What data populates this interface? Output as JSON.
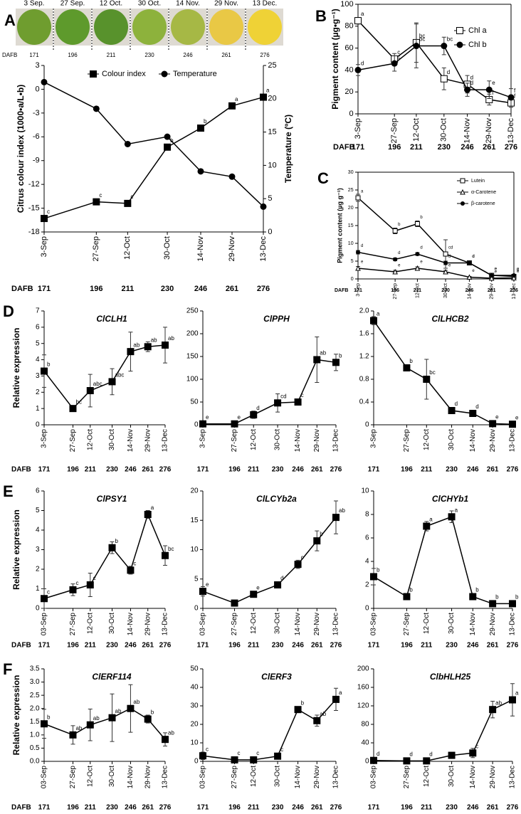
{
  "photo_strip": {
    "labels": [
      "3 Sep.",
      "27 Sep.",
      "12 Oct.",
      "30 Oct.",
      "14 Nov.",
      "29 Nov.",
      "13 Dec."
    ],
    "dafb_label": "DAFB",
    "dafb": [
      171,
      196,
      211,
      230,
      246,
      261,
      276
    ]
  },
  "chart_data": [
    {
      "type": "line",
      "panel": "A",
      "categories": [
        "3-Sep",
        "27-Sep",
        "12-Oct",
        "30-Oct",
        "14-Nov",
        "29-Nov",
        "13-Dec"
      ],
      "x": [
        171,
        196,
        211,
        230,
        246,
        261,
        276
      ],
      "xlim": [
        171,
        276
      ],
      "dafb_label": "DAFB",
      "y_label": "Citrus colour index (1000•a/L•b)",
      "y2_label": "Temperature (ºC)",
      "ylim": [
        -18,
        3
      ],
      "yticks": [
        -18,
        -15,
        -12,
        -9,
        -6,
        -3,
        0,
        3
      ],
      "y2lim": [
        0,
        25
      ],
      "y2ticks": [
        0,
        5,
        10,
        15,
        20,
        25
      ],
      "legend": "upper center",
      "series": [
        {
          "name": "Colour index",
          "marker": "square",
          "color": "#000000",
          "values": [
            -16.3,
            -14.2,
            -14.4,
            -7.3,
            -4.9,
            -2.1,
            -1.0
          ],
          "letters": [
            "c",
            "c",
            "c",
            "b",
            "b",
            "a",
            "a"
          ]
        },
        {
          "name": "Temperature",
          "marker": "circle",
          "color": "#000000",
          "axis": "y2",
          "values": [
            22.5,
            18.5,
            13.2,
            14.3,
            9.1,
            8.3,
            3.8
          ]
        }
      ]
    },
    {
      "type": "line",
      "panel": "B",
      "categories": [
        "3-Sep",
        "27-Sep",
        "12-Oct",
        "30-Oct",
        "14-Nov",
        "29-Nov",
        "13-Dec"
      ],
      "x": [
        171,
        196,
        211,
        230,
        246,
        261,
        276
      ],
      "xlim": [
        171,
        276
      ],
      "dafb_label": "DAFB",
      "frame": true,
      "y_label": "Pigment content (µg•g⁻¹)",
      "ylim": [
        0,
        100
      ],
      "yticks": [
        0,
        20,
        40,
        60,
        80,
        100
      ],
      "legend": "center right",
      "series": [
        {
          "name": "Chl a",
          "marker": "open-square",
          "color": "#000000",
          "values": [
            85,
            50,
            65,
            32,
            27,
            13,
            10
          ],
          "errors": [
            3,
            5,
            18,
            10,
            8,
            5,
            4
          ],
          "letters": [
            "a",
            "c",
            "bc",
            "d",
            "d",
            "f",
            "f"
          ]
        },
        {
          "name": "Chl b",
          "marker": "circle",
          "color": "#000000",
          "values": [
            40,
            46,
            62,
            62,
            22,
            22,
            15
          ],
          "errors": [
            5,
            7,
            20,
            8,
            6,
            8,
            8
          ],
          "letters": [
            "d",
            "c",
            "bc",
            "bc",
            "d",
            "e",
            "f"
          ]
        }
      ]
    },
    {
      "type": "line",
      "panel": "C",
      "categories": [
        "3-Sep",
        "27-Sep",
        "12-Oct",
        "30-Oct",
        "14-Nov",
        "29-Nov",
        "13-Dec"
      ],
      "x": [
        171,
        196,
        211,
        230,
        246,
        261,
        276
      ],
      "xlim": [
        171,
        276
      ],
      "dafb_label": "DAFB",
      "frame": true,
      "small": true,
      "y_label": "Pigment content (µg g⁻¹)",
      "ylim": [
        0,
        30
      ],
      "yticks": [
        0,
        5,
        10,
        15,
        20,
        25,
        30
      ],
      "legend": "upper right",
      "series": [
        {
          "name": "Lutein",
          "marker": "open-square",
          "color": "#000000",
          "values": [
            22.8,
            13.5,
            15.5,
            7,
            4.5,
            1,
            0.7
          ],
          "errors": [
            1,
            0.8,
            0.8,
            4,
            0.5,
            0.3,
            0.3
          ],
          "letters": [
            "a",
            "b",
            "b",
            "cd",
            "d",
            "e",
            "e"
          ]
        },
        {
          "name": "α-Carotene",
          "marker": "triangle",
          "color": "#000000",
          "values": [
            3,
            2,
            3,
            2,
            0.5,
            0.2,
            0.3
          ],
          "errors": [
            0.5,
            0.4,
            0.4,
            0.4,
            0.2,
            0.1,
            0.1
          ],
          "letters": [
            "e",
            "e",
            "e",
            "e",
            "e",
            "e",
            "e"
          ]
        },
        {
          "name": "β-carotene",
          "marker": "circle",
          "color": "#000000",
          "values": [
            7.5,
            5.5,
            7,
            4.5,
            4.5,
            1,
            1
          ],
          "errors": [
            0.5,
            0.4,
            0.4,
            0.5,
            0.4,
            0.2,
            0.2
          ],
          "letters": [
            "d",
            "d",
            "d",
            "d",
            "d",
            "e",
            "e"
          ]
        }
      ]
    },
    {
      "type": "line",
      "panel": "D",
      "title": "ClCLH1",
      "categories": [
        "3-Sep",
        "27-Sep",
        "12-Oct",
        "30-Oct",
        "14-Nov",
        "29-Nov",
        "13-Dec"
      ],
      "x": [
        171,
        196,
        211,
        230,
        246,
        261,
        276
      ],
      "xlim": [
        171,
        276
      ],
      "dafb_label": "DAFB",
      "y_label": "Relative expression",
      "ylim": [
        0,
        7
      ],
      "yticks": [
        0,
        1,
        2,
        3,
        4,
        5,
        6,
        7
      ],
      "series": [
        {
          "marker": "square",
          "color": "#000000",
          "values": [
            3.3,
            1.0,
            2.1,
            2.65,
            4.5,
            4.8,
            4.9
          ],
          "errors": [
            1.0,
            0.1,
            1.0,
            0.8,
            1.2,
            0.3,
            1.1
          ],
          "letters": [
            "b",
            "bc",
            "abc",
            "abc",
            "ab",
            "ab",
            "ab"
          ]
        }
      ]
    },
    {
      "type": "line",
      "title": "ClPPH",
      "categories": [
        "3-Sep",
        "27-Sep",
        "12-Oct",
        "30-Oct",
        "14-Nov",
        "29-Nov",
        "13-Dec"
      ],
      "x": [
        171,
        196,
        211,
        230,
        246,
        261,
        276
      ],
      "xlim": [
        171,
        276
      ],
      "ylim": [
        0,
        250
      ],
      "yticks": [
        0,
        50,
        100,
        150,
        200,
        250
      ],
      "series": [
        {
          "marker": "square",
          "color": "#000000",
          "values": [
            2,
            2,
            22,
            48,
            50,
            143,
            137
          ],
          "errors": [
            1,
            1,
            8,
            20,
            5,
            50,
            18
          ],
          "letters": [
            "e",
            "e",
            "d",
            "cd",
            "c",
            "ab",
            "b"
          ]
        }
      ]
    },
    {
      "type": "line",
      "title": "ClLHCB2",
      "categories": [
        "3-Sep",
        "27-Sep",
        "12-Oct",
        "30-Oct",
        "14-Nov",
        "29-Nov",
        "13-Dec"
      ],
      "x": [
        171,
        196,
        211,
        230,
        246,
        261,
        276
      ],
      "xlim": [
        171,
        276
      ],
      "ylim": [
        0,
        2
      ],
      "yticks": [
        0,
        0.4,
        0.8,
        1.2,
        1.6,
        {
          "value": 2,
          "label": "2.0"
        }
      ],
      "series": [
        {
          "marker": "square",
          "color": "#000000",
          "values": [
            1.83,
            1.0,
            0.8,
            0.25,
            0.2,
            0.02,
            0.01
          ],
          "errors": [
            0.07,
            0.03,
            0.35,
            0.03,
            0.04,
            0.01,
            0.01
          ],
          "letters": [
            "a",
            "b",
            "bc",
            "d",
            "d",
            "e",
            "e"
          ]
        }
      ]
    },
    {
      "type": "line",
      "panel": "E",
      "title": "ClPSY1",
      "categories": [
        "03-Sep",
        "27-Sep",
        "12-Oct",
        "30-Oct",
        "14-Nov",
        "29-Nov",
        "13-Dec"
      ],
      "x": [
        171,
        196,
        211,
        230,
        246,
        261,
        276
      ],
      "xlim": [
        171,
        276
      ],
      "dafb_label": "DAFB",
      "y_label": "Relative expression",
      "ylim": [
        0,
        6
      ],
      "yticks": [
        0,
        1,
        2,
        3,
        4,
        5,
        6
      ],
      "series": [
        {
          "marker": "square",
          "color": "#000000",
          "values": [
            0.5,
            0.95,
            1.2,
            3.1,
            1.95,
            4.8,
            2.7
          ],
          "errors": [
            0.5,
            0.3,
            0.6,
            0.3,
            0.2,
            0.2,
            0.5
          ],
          "letters": [
            "c",
            "c",
            "c",
            "b",
            "c",
            "a",
            "bc"
          ]
        }
      ]
    },
    {
      "type": "line",
      "title": "ClLCYb2a",
      "categories": [
        "03-Sep",
        "27-Sep",
        "12-Oct",
        "30-Oct",
        "14-Nov",
        "29-Nov",
        "13-Dec"
      ],
      "x": [
        171,
        196,
        211,
        230,
        246,
        261,
        276
      ],
      "xlim": [
        171,
        276
      ],
      "ylim": [
        0,
        20
      ],
      "yticks": [
        0,
        5,
        10,
        15,
        20
      ],
      "series": [
        {
          "marker": "square",
          "color": "#000000",
          "values": [
            2.9,
            0.9,
            2.4,
            4.0,
            7.5,
            11.5,
            15.5
          ],
          "errors": [
            0.8,
            0.3,
            0.3,
            0.3,
            0.7,
            1.7,
            2.8
          ],
          "letters": [
            "e",
            null,
            "e",
            "d",
            "c",
            "b",
            "ab"
          ]
        }
      ]
    },
    {
      "type": "line",
      "title": "ClCHYb1",
      "categories": [
        "03-Sep",
        "27-Sep",
        "12-Oct",
        "30-Oct",
        "14-Nov",
        "29-Nov",
        "13-Dec"
      ],
      "x": [
        171,
        196,
        211,
        230,
        246,
        261,
        276
      ],
      "xlim": [
        171,
        276
      ],
      "ylim": [
        0,
        10
      ],
      "yticks": [
        0,
        2,
        4,
        6,
        8,
        10
      ],
      "series": [
        {
          "marker": "square",
          "color": "#000000",
          "values": [
            2.7,
            1.0,
            7.0,
            7.8,
            1.0,
            0.4,
            0.4
          ],
          "errors": [
            0.7,
            0.1,
            0.4,
            0.5,
            0.1,
            0.2,
            0.2
          ],
          "letters": [
            "b",
            "b",
            "a",
            "a",
            "b",
            "b",
            "b"
          ]
        }
      ]
    },
    {
      "type": "line",
      "panel": "F",
      "title": "ClERF114",
      "categories": [
        "03-Sep",
        "27-Sep",
        "12-Oct",
        "30-Oct",
        "14-Nov",
        "29-Nov",
        "13-Dec"
      ],
      "x": [
        171,
        196,
        211,
        230,
        246,
        261,
        276
      ],
      "xlim": [
        171,
        276
      ],
      "dafb_label": "DAFB",
      "y_label": "Relative expression",
      "ylim": [
        0,
        3.5
      ],
      "yticks": [
        {
          "value": 0,
          "label": "0.0"
        },
        0.5,
        {
          "value": 1,
          "label": "1.0"
        },
        1.5,
        {
          "value": 2,
          "label": "2.0"
        },
        2.5,
        {
          "value": 3,
          "label": "3.0"
        },
        3.5
      ],
      "series": [
        {
          "marker": "square",
          "color": "#000000",
          "values": [
            1.42,
            1.0,
            1.38,
            1.65,
            2.0,
            1.6,
            0.83
          ],
          "errors": [
            0.55,
            0.35,
            0.6,
            0.9,
            0.9,
            0.15,
            0.25
          ],
          "letters": [
            "b",
            "ab",
            "ab",
            "ab",
            "ab",
            "b",
            "ab"
          ]
        }
      ]
    },
    {
      "type": "line",
      "title": "ClERF3",
      "categories": [
        "03-Sep",
        "27-Sep",
        "12-Oct",
        "30-Oct",
        "14-Nov",
        "29-Nov",
        "13-Dec"
      ],
      "x": [
        171,
        196,
        211,
        230,
        246,
        261,
        276
      ],
      "xlim": [
        171,
        276
      ],
      "ylim": [
        0,
        50
      ],
      "yticks": [
        0,
        10,
        20,
        30,
        40,
        50
      ],
      "series": [
        {
          "marker": "square",
          "color": "#000000",
          "values": [
            3,
            0.8,
            0.8,
            2.8,
            28,
            22,
            33.5
          ],
          "errors": [
            2,
            1,
            1,
            1,
            1,
            3,
            6
          ],
          "letters": [
            "c",
            "c",
            "c",
            "c",
            "b",
            "ab",
            "a"
          ]
        }
      ]
    },
    {
      "type": "line",
      "title": "ClbHLH25",
      "categories": [
        "03-Sep",
        "27-Sep",
        "12-Oct",
        "30-Oct",
        "14-Nov",
        "29-Nov",
        "13-Dec"
      ],
      "x": [
        171,
        196,
        211,
        230,
        246,
        261,
        276
      ],
      "xlim": [
        171,
        276
      ],
      "ylim": [
        0,
        200
      ],
      "yticks": [
        0,
        40,
        80,
        120,
        160,
        200
      ],
      "series": [
        {
          "marker": "square",
          "color": "#000000",
          "values": [
            2,
            1,
            1,
            13,
            18,
            112,
            133
          ],
          "errors": [
            1,
            1,
            1,
            3,
            10,
            18,
            35
          ],
          "letters": [
            "d",
            "d",
            "d",
            null,
            "c",
            "ab",
            "a"
          ]
        }
      ]
    }
  ]
}
